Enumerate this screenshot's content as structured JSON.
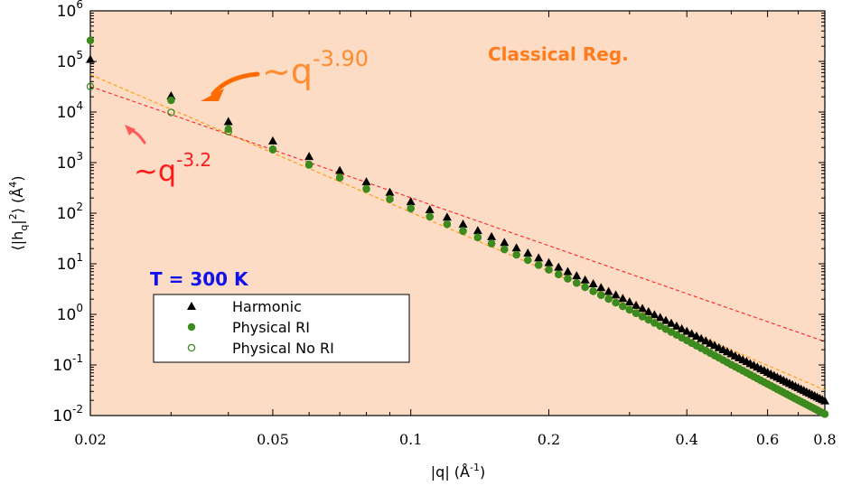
{
  "chart_data": {
    "type": "scatter",
    "x_scale": "log",
    "y_scale": "log",
    "xlim": [
      0.02,
      0.8
    ],
    "ylim": [
      0.01,
      1000000
    ],
    "xlabel": {
      "base": "|q| (Å",
      "sup": "-1",
      "tail": ")"
    },
    "ylabel": {
      "pre": "⟨|h",
      "sub": "q",
      "mid": "|",
      "sup": "2",
      "post": "⟩ (Å",
      "sup2": "4",
      "tail": ")"
    },
    "x_ticks": [
      {
        "value": 0.02,
        "label": "0.02"
      },
      {
        "value": 0.05,
        "label": "0.05"
      },
      {
        "value": 0.1,
        "label": "0.1"
      },
      {
        "value": 0.2,
        "label": "0.2"
      },
      {
        "value": 0.4,
        "label": "0.4"
      },
      {
        "value": 0.6,
        "label": "0.6"
      },
      {
        "value": 0.8,
        "label": "0.8"
      }
    ],
    "y_ticks": [
      {
        "value": 0.01,
        "base": "10",
        "exp": "-2"
      },
      {
        "value": 0.1,
        "base": "10",
        "exp": "-1"
      },
      {
        "value": 1,
        "base": "10",
        "exp": "0"
      },
      {
        "value": 10,
        "base": "10",
        "exp": "1"
      },
      {
        "value": 100,
        "base": "10",
        "exp": "2"
      },
      {
        "value": 1000,
        "base": "10",
        "exp": "3"
      },
      {
        "value": 10000,
        "base": "10",
        "exp": "4"
      },
      {
        "value": 100000,
        "base": "10",
        "exp": "5"
      },
      {
        "value": 1000000,
        "base": "10",
        "exp": "6"
      }
    ],
    "region_label": "Classical Reg.",
    "temperature_label": "T = 300 K",
    "fit_annotations": [
      {
        "prefix": "~q",
        "exp": "-3.90",
        "color": "#ff8c2e"
      },
      {
        "prefix": "~q",
        "exp": "-3.2",
        "color": "#ff1a1a"
      }
    ],
    "fit_lines": [
      {
        "slope": -3.9,
        "x_start": 0.02,
        "y_start": 55000,
        "x_end": 0.8,
        "y_end": 0.032,
        "color": "#ff9900"
      },
      {
        "slope": -3.2,
        "x_start": 0.02,
        "y_start": 32000,
        "x_end": 0.8,
        "y_end": 0.29,
        "color": "#ff2020"
      }
    ],
    "series": [
      {
        "name": "Harmonic",
        "marker": "triangle",
        "color": "#000000",
        "x": [
          0.02,
          0.03,
          0.04,
          0.05,
          0.06,
          0.07,
          0.08,
          0.09,
          0.1,
          0.11,
          0.12,
          0.13,
          0.14,
          0.15,
          0.16,
          0.17,
          0.18,
          0.19,
          0.2,
          0.21,
          0.22,
          0.23,
          0.24,
          0.25,
          0.26,
          0.27,
          0.28,
          0.29,
          0.3,
          0.31,
          0.32,
          0.33,
          0.34,
          0.35,
          0.36,
          0.37,
          0.38,
          0.39,
          0.4,
          0.41,
          0.42,
          0.43,
          0.44,
          0.45,
          0.46,
          0.47,
          0.48,
          0.49,
          0.5,
          0.51,
          0.52,
          0.53,
          0.54,
          0.55,
          0.56,
          0.57,
          0.58,
          0.59,
          0.6,
          0.61,
          0.62,
          0.63,
          0.64,
          0.65,
          0.66,
          0.67,
          0.68,
          0.69,
          0.7,
          0.71,
          0.72,
          0.73,
          0.74,
          0.75,
          0.76,
          0.77,
          0.78,
          0.79,
          0.8
        ],
        "y": [
          110000,
          21000,
          6500,
          2700,
          1330,
          700,
          420,
          260,
          170,
          118,
          84,
          61,
          45.5,
          34.5,
          26.5,
          20.7,
          16.4,
          13.1,
          10.6,
          8.6,
          7.05,
          5.82,
          4.83,
          4.04,
          3.39,
          2.86,
          2.43,
          2.07,
          1.77,
          1.52,
          1.31,
          1.14,
          0.99,
          0.87,
          0.76,
          0.67,
          0.59,
          0.52,
          0.465,
          0.415,
          0.372,
          0.333,
          0.3,
          0.27,
          0.244,
          0.221,
          0.201,
          0.183,
          0.167,
          0.152,
          0.139,
          0.127,
          0.117,
          0.107,
          0.099,
          0.091,
          0.084,
          0.078,
          0.072,
          0.0668,
          0.062,
          0.0576,
          0.0536,
          0.0499,
          0.0466,
          0.0435,
          0.0407,
          0.0381,
          0.0357,
          0.0335,
          0.0314,
          0.0295,
          0.0278,
          0.0262,
          0.0247,
          0.0233,
          0.022,
          0.0207,
          0.0196
        ]
      },
      {
        "name": "Physical RI",
        "marker": "filled-circle",
        "color": "#3d8a1e",
        "x": [
          0.02,
          0.03,
          0.04,
          0.05,
          0.06,
          0.07,
          0.08,
          0.09,
          0.1,
          0.11,
          0.12,
          0.13,
          0.14,
          0.15,
          0.16,
          0.17,
          0.18,
          0.19,
          0.2,
          0.21,
          0.22,
          0.23,
          0.24,
          0.25,
          0.26,
          0.27,
          0.28,
          0.29,
          0.3,
          0.31,
          0.32,
          0.33,
          0.34,
          0.35,
          0.36,
          0.37,
          0.38,
          0.39,
          0.4,
          0.41,
          0.42,
          0.43,
          0.44,
          0.45,
          0.46,
          0.47,
          0.48,
          0.49,
          0.5,
          0.51,
          0.52,
          0.53,
          0.54,
          0.55,
          0.56,
          0.57,
          0.58,
          0.59,
          0.6,
          0.61,
          0.62,
          0.63,
          0.64,
          0.65,
          0.66,
          0.67,
          0.68,
          0.69,
          0.7,
          0.71,
          0.72,
          0.73,
          0.74,
          0.75,
          0.76,
          0.77,
          0.78,
          0.79,
          0.8
        ],
        "y": [
          260000,
          17000,
          4600,
          1850,
          920,
          510,
          305,
          192,
          125,
          86,
          61,
          45,
          33.5,
          25.3,
          19.4,
          15.1,
          11.9,
          9.5,
          7.65,
          6.2,
          5.08,
          4.18,
          3.46,
          2.88,
          2.41,
          2.03,
          1.71,
          1.45,
          1.24,
          1.06,
          0.91,
          0.79,
          0.68,
          0.59,
          0.515,
          0.45,
          0.395,
          0.348,
          0.307,
          0.272,
          0.241,
          0.215,
          0.192,
          0.172,
          0.154,
          0.139,
          0.125,
          0.113,
          0.102,
          0.093,
          0.0845,
          0.077,
          0.0703,
          0.0643,
          0.0589,
          0.054,
          0.0496,
          0.0457,
          0.0421,
          0.0389,
          0.0359,
          0.0333,
          0.0308,
          0.0286,
          0.0266,
          0.0248,
          0.0231,
          0.0215,
          0.0201,
          0.0188,
          0.0176,
          0.0165,
          0.0154,
          0.0145,
          0.0136,
          0.0128,
          0.012,
          0.0113,
          0.0107
        ]
      },
      {
        "name": "Physical No RI",
        "marker": "open-circle",
        "color": "#3d8a1e",
        "x": [
          0.02,
          0.03,
          0.04,
          0.05,
          0.06,
          0.07,
          0.08,
          0.09,
          0.1,
          0.11,
          0.12,
          0.13,
          0.14,
          0.15,
          0.16,
          0.17,
          0.18,
          0.19,
          0.2,
          0.21,
          0.22,
          0.23,
          0.24,
          0.25,
          0.26,
          0.27,
          0.28,
          0.29,
          0.3,
          0.31,
          0.32,
          0.33,
          0.34,
          0.35,
          0.36,
          0.37,
          0.38,
          0.39,
          0.4,
          0.41,
          0.42,
          0.43,
          0.44,
          0.45,
          0.46,
          0.47,
          0.48,
          0.49,
          0.5,
          0.51,
          0.52,
          0.53,
          0.54,
          0.55,
          0.56,
          0.57,
          0.58,
          0.59,
          0.6,
          0.61,
          0.62,
          0.63,
          0.64,
          0.65,
          0.66,
          0.67,
          0.68,
          0.69,
          0.7,
          0.71,
          0.72,
          0.73,
          0.74,
          0.75,
          0.76,
          0.77,
          0.78,
          0.79,
          0.8
        ],
        "y": [
          32000,
          9800,
          4100,
          1800,
          900,
          500,
          300,
          188,
          123,
          85,
          60,
          44,
          33,
          25,
          19.2,
          15,
          11.8,
          9.4,
          7.6,
          6.15,
          5.04,
          4.15,
          3.43,
          2.86,
          2.39,
          2.01,
          1.7,
          1.44,
          1.23,
          1.05,
          0.9,
          0.78,
          0.675,
          0.585,
          0.51,
          0.446,
          0.392,
          0.345,
          0.305,
          0.27,
          0.24,
          0.214,
          0.191,
          0.171,
          0.153,
          0.138,
          0.124,
          0.112,
          0.101,
          0.092,
          0.084,
          0.0765,
          0.07,
          0.064,
          0.0586,
          0.0538,
          0.0494,
          0.0455,
          0.042,
          0.0388,
          0.0359,
          0.0332,
          0.0308,
          0.0286,
          0.0266,
          0.0247,
          0.023,
          0.0215,
          0.0201,
          0.0188,
          0.0176,
          0.0165,
          0.0154,
          0.0145,
          0.0136,
          0.0128,
          0.012,
          0.0113,
          0.0107
        ]
      }
    ]
  }
}
